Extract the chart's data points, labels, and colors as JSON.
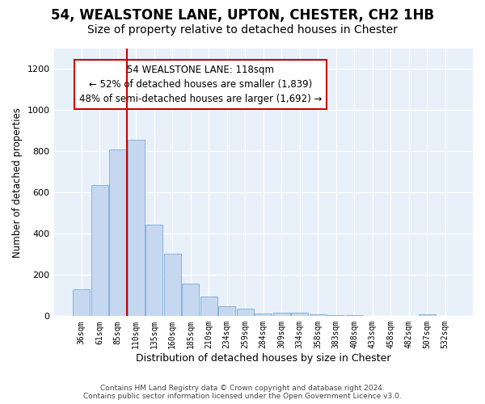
{
  "title1": "54, WEALSTONE LANE, UPTON, CHESTER, CH2 1HB",
  "title2": "Size of property relative to detached houses in Chester",
  "xlabel": "Distribution of detached houses by size in Chester",
  "ylabel": "Number of detached properties",
  "categories": [
    "36sqm",
    "61sqm",
    "85sqm",
    "110sqm",
    "135sqm",
    "160sqm",
    "185sqm",
    "210sqm",
    "234sqm",
    "259sqm",
    "284sqm",
    "309sqm",
    "334sqm",
    "358sqm",
    "383sqm",
    "408sqm",
    "433sqm",
    "458sqm",
    "482sqm",
    "507sqm",
    "532sqm"
  ],
  "values": [
    130,
    638,
    808,
    858,
    445,
    305,
    158,
    95,
    50,
    38,
    15,
    18,
    18,
    10,
    5,
    5,
    2,
    2,
    2,
    10,
    2
  ],
  "bar_color": "#c5d8f0",
  "bar_edge_color": "#7aaad4",
  "vline_x": 2.5,
  "vline_color": "#cc0000",
  "annotation_text": "54 WEALSTONE LANE: 118sqm\n← 52% of detached houses are smaller (1,839)\n48% of semi-detached houses are larger (1,692) →",
  "annotation_box_color": "#ffffff",
  "annotation_box_edge": "#cc0000",
  "ylim": [
    0,
    1300
  ],
  "yticks": [
    0,
    200,
    400,
    600,
    800,
    1000,
    1200
  ],
  "footer": "Contains HM Land Registry data © Crown copyright and database right 2024.\nContains public sector information licensed under the Open Government Licence v3.0.",
  "fig_bg_color": "#ffffff",
  "plot_bg_color": "#e8f0fa",
  "title1_fontsize": 12,
  "title2_fontsize": 10,
  "annotation_fontsize": 8.5
}
